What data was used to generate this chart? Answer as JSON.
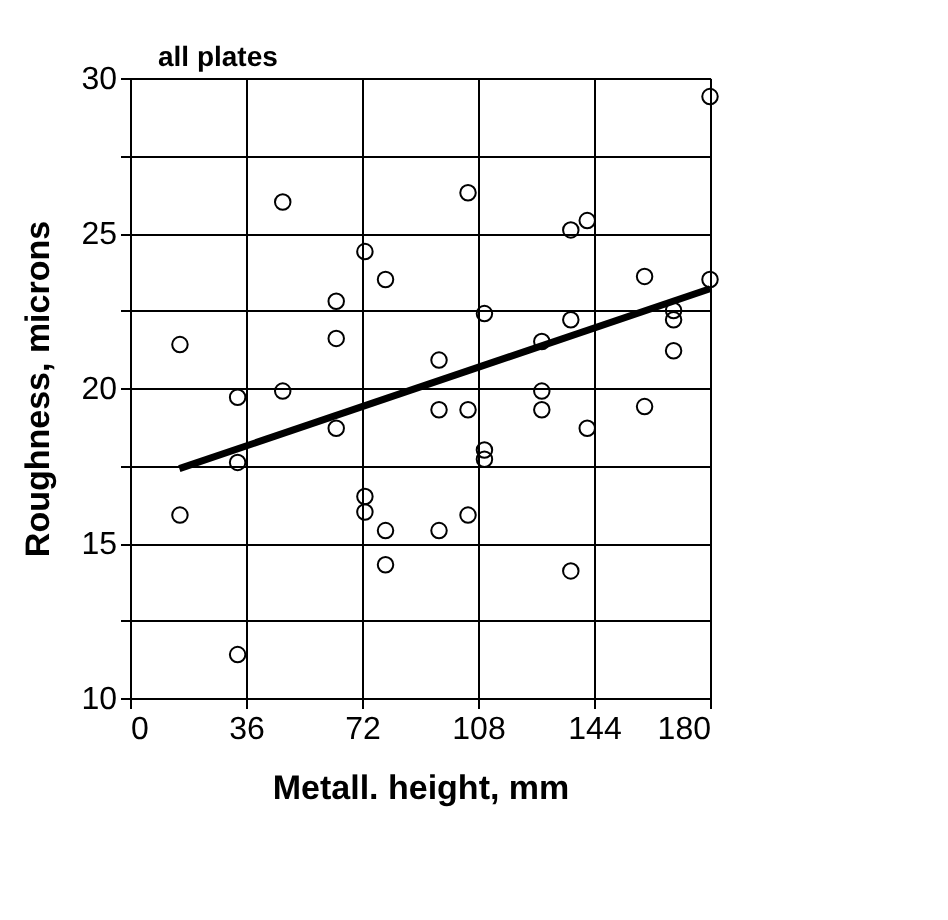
{
  "chart_data": {
    "type": "scatter",
    "xlabel": "Metall. height, mm",
    "ylabel": "Roughness, microns",
    "annotations": [
      "all plates"
    ],
    "xlim": [
      0,
      180
    ],
    "xticks": [
      0,
      36,
      72,
      108,
      144,
      180
    ],
    "ylim": [
      10,
      30
    ],
    "yticks": [
      10,
      {
        "value": 12.5,
        "label": null
      },
      15,
      {
        "value": 17.5,
        "label": null
      },
      20,
      {
        "value": 22.5,
        "label": null
      },
      25,
      {
        "value": 27.5,
        "label": null
      },
      30
    ],
    "grid": true,
    "marker": "circle",
    "series": [
      {
        "type": "scatter",
        "color": "#000000",
        "x": [
          47.4,
          72.9,
          79.3,
          64,
          64,
          15.5,
          33.4,
          47.4,
          64,
          33.4,
          72.9,
          15.5,
          33.4,
          72.9,
          79.3,
          79.3,
          104.9,
          136.8,
          141.9,
          159.7,
          110,
          136.8,
          168.7,
          168.7,
          127.8,
          95.9,
          168.7,
          127.8,
          95.9,
          104.9,
          127.8,
          159.7,
          141.9,
          110,
          110,
          95.9,
          104.9,
          136.8,
          180,
          180
        ],
        "values": [
          26.0,
          24.4,
          23.5,
          22.8,
          21.6,
          21.4,
          19.7,
          19.9,
          18.7,
          17.6,
          16.5,
          15.9,
          11.4,
          16.0,
          15.4,
          14.3,
          26.3,
          25.1,
          25.4,
          23.6,
          22.4,
          22.2,
          22.5,
          22.2,
          21.5,
          20.9,
          21.2,
          19.9,
          19.3,
          19.3,
          19.3,
          19.4,
          18.7,
          18.0,
          17.7,
          15.4,
          15.9,
          14.1,
          29.4,
          23.5
        ]
      },
      {
        "type": "line",
        "color": "#000000",
        "x": [
          15.3,
          180
        ],
        "values": [
          17.4,
          23.2
        ],
        "marker": "none",
        "line_style": "solid"
      }
    ]
  }
}
